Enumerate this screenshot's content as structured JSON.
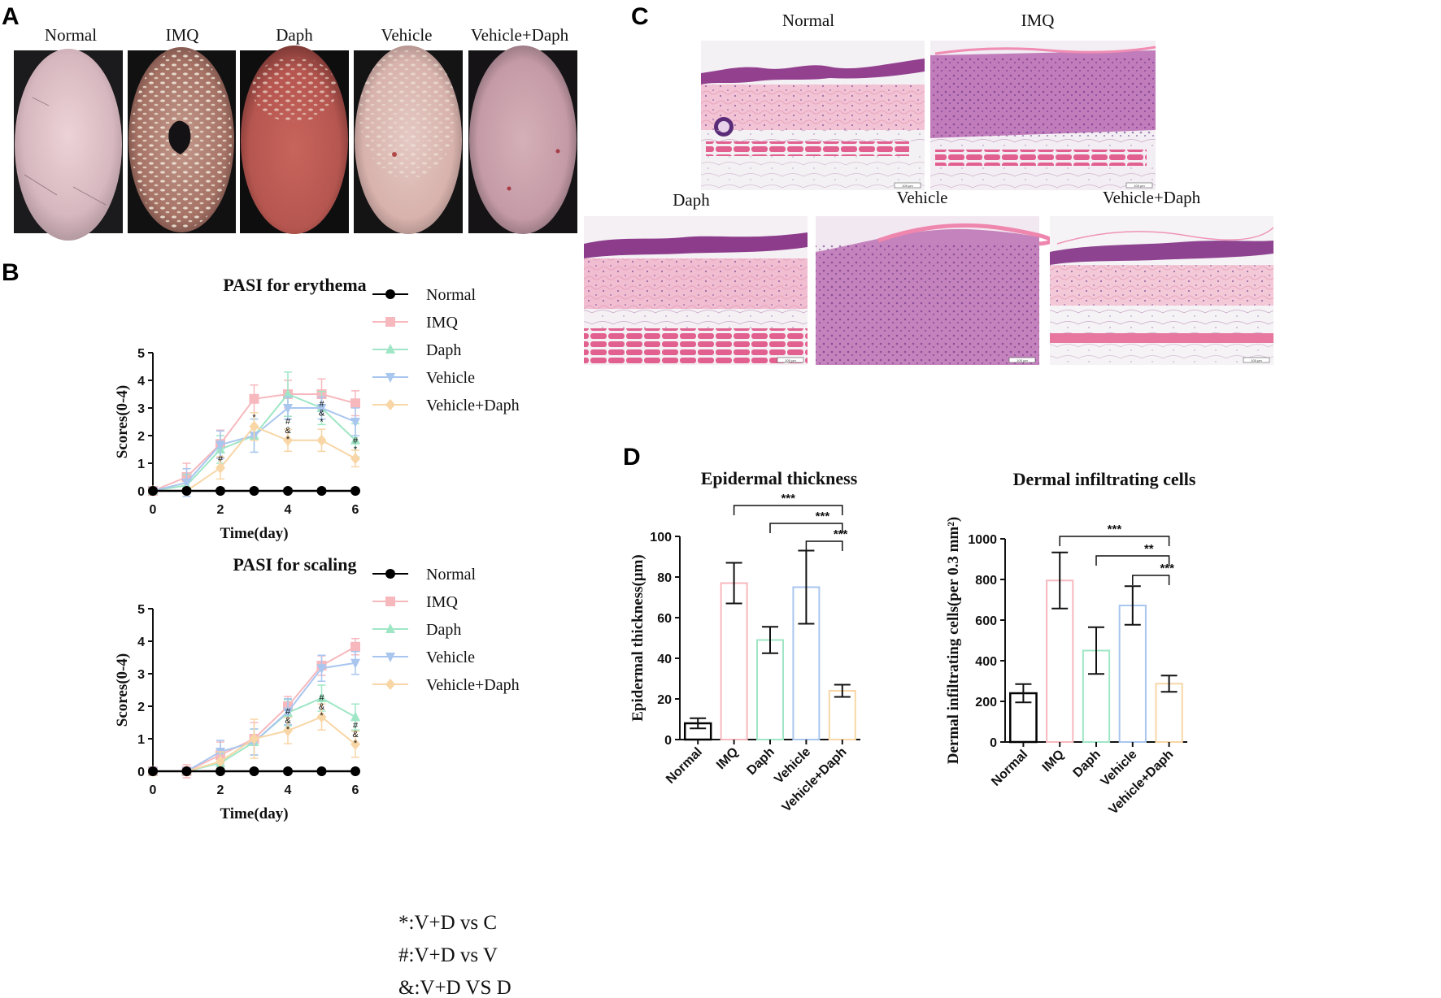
{
  "panel_labels": {
    "a": "A",
    "b": "B",
    "c": "C",
    "d": "D"
  },
  "photo_panel": {
    "titles": [
      "Normal",
      "IMQ",
      "Daph",
      "Vehicle",
      "Vehicle+Daph"
    ]
  },
  "histology_panel": {
    "titles": [
      "Normal",
      "IMQ",
      "Daph",
      "Vehicle",
      "Vehicle+Daph"
    ],
    "scale_bar_label": "100 μm"
  },
  "notes": [
    "*:V+D vs C",
    "#:V+D vs V",
    "&:V+D VS D"
  ],
  "colors": {
    "Normal": "#000000",
    "IMQ": "#f7b8bd",
    "Daph": "#9fe6c6",
    "Vehicle": "#a9c6ef",
    "Vehicle+Daph": "#f8d6a6"
  },
  "chart_data": [
    {
      "type": "line",
      "title": "PASI for erythema",
      "xlabel": "Time(day)",
      "ylabel": "Scores(0-4)",
      "xlim": [
        0,
        6
      ],
      "ylim": [
        0,
        5
      ],
      "xticks": [
        0,
        2,
        4,
        6
      ],
      "yticks": [
        0,
        1,
        2,
        3,
        4,
        5
      ],
      "legend_position": "right",
      "x": [
        0,
        1,
        2,
        3,
        4,
        5,
        6
      ],
      "series": [
        {
          "name": "Normal",
          "color": "#000000",
          "values": [
            0,
            0,
            0,
            0,
            0,
            0,
            0
          ],
          "errors": [
            0,
            0,
            0,
            0,
            0,
            0,
            0
          ],
          "marker": "circle"
        },
        {
          "name": "IMQ",
          "color": "#f7b8bd",
          "values": [
            0,
            0.5,
            1.7,
            3.33,
            3.5,
            3.5,
            3.17
          ],
          "errors": [
            0,
            0.5,
            0.5,
            0.5,
            0.5,
            0.55,
            0.45
          ],
          "marker": "square"
        },
        {
          "name": "Daph",
          "color": "#9fe6c6",
          "values": [
            0,
            0.2,
            1.5,
            2.0,
            3.5,
            3.0,
            1.83
          ],
          "errors": [
            0,
            0.4,
            0.5,
            0.6,
            0.8,
            0.6,
            0.6
          ],
          "marker": "triangle-up"
        },
        {
          "name": "Vehicle",
          "color": "#a9c6ef",
          "values": [
            0,
            0.3,
            1.67,
            2.0,
            3.0,
            3.0,
            2.5
          ],
          "errors": [
            0,
            0.5,
            0.5,
            0.6,
            0.4,
            0.4,
            0.5
          ],
          "marker": "triangle-down"
        },
        {
          "name": "Vehicle+Daph",
          "color": "#f8d6a6",
          "values": [
            0,
            0,
            0.83,
            2.33,
            1.83,
            1.83,
            1.17
          ],
          "errors": [
            0,
            0,
            0.4,
            0.5,
            0.4,
            0.4,
            0.3
          ],
          "marker": "diamond"
        }
      ],
      "annotations": [
        {
          "x": 2,
          "y": 0.83,
          "text": "#"
        },
        {
          "x": 3,
          "y": 2.33,
          "text": "*"
        },
        {
          "x": 4,
          "y": 1.83,
          "text": "#&*"
        },
        {
          "x": 5,
          "y": 2.45,
          "text": "#&*"
        },
        {
          "x": 6,
          "y": 1.45,
          "text": "#*"
        }
      ]
    },
    {
      "type": "line",
      "title": "PASI for scaling",
      "xlabel": "Time(day)",
      "ylabel": "Scores(0-4)",
      "xlim": [
        0,
        6
      ],
      "ylim": [
        0,
        5
      ],
      "xticks": [
        0,
        2,
        4,
        6
      ],
      "yticks": [
        0,
        1,
        2,
        3,
        4,
        5
      ],
      "legend_position": "right",
      "x": [
        0,
        1,
        2,
        3,
        4,
        5,
        6
      ],
      "series": [
        {
          "name": "Normal",
          "color": "#000000",
          "values": [
            0,
            0,
            0,
            0,
            0,
            0,
            0
          ],
          "errors": [
            0,
            0,
            0,
            0,
            0,
            0,
            0
          ],
          "marker": "circle"
        },
        {
          "name": "IMQ",
          "color": "#f7b8bd",
          "values": [
            0,
            0,
            0.5,
            1.0,
            2.0,
            3.25,
            3.83
          ],
          "errors": [
            0,
            0.2,
            0.4,
            0.5,
            0.3,
            0.3,
            0.25
          ],
          "marker": "square"
        },
        {
          "name": "Daph",
          "color": "#9fe6c6",
          "values": [
            0,
            0,
            0.25,
            0.9,
            1.8,
            2.25,
            1.67
          ],
          "errors": [
            0,
            0,
            0.3,
            0.4,
            0.4,
            0.4,
            0.4
          ],
          "marker": "triangle-up"
        },
        {
          "name": "Vehicle",
          "color": "#a9c6ef",
          "values": [
            0,
            0,
            0.6,
            0.9,
            1.83,
            3.17,
            3.33
          ],
          "errors": [
            0,
            0,
            0.35,
            0.4,
            0.4,
            0.4,
            0.35
          ],
          "marker": "triangle-down"
        },
        {
          "name": "Vehicle+Daph",
          "color": "#f8d6a6",
          "values": [
            0,
            0,
            0.3,
            1.0,
            1.25,
            1.67,
            0.83
          ],
          "errors": [
            0,
            0,
            0.3,
            0.6,
            0.4,
            0.4,
            0.4
          ],
          "marker": "diamond"
        }
      ],
      "annotations": [
        {
          "x": 4,
          "y": 1.25,
          "text": "#&*"
        },
        {
          "x": 5,
          "y": 1.67,
          "text": "#&*"
        },
        {
          "x": 6,
          "y": 0.83,
          "text": "#&*"
        }
      ]
    },
    {
      "type": "bar",
      "title": "Epidermal thickness",
      "xlabel": "",
      "ylabel": "Epidermal thickness(μm)",
      "ylim": [
        0,
        100
      ],
      "yticks": [
        0,
        20,
        40,
        60,
        80,
        100
      ],
      "categories": [
        "Normal",
        "IMQ",
        "Daph",
        "Vehicle",
        "Vehicle+Daph"
      ],
      "values": [
        8,
        77,
        49,
        75,
        24
      ],
      "errors": [
        2.5,
        10,
        6.5,
        18,
        3
      ],
      "significance": [
        {
          "from": 1,
          "to": 4,
          "label": "***"
        },
        {
          "from": 2,
          "to": 4,
          "label": "***"
        },
        {
          "from": 3,
          "to": 4,
          "label": "***"
        }
      ]
    },
    {
      "type": "bar",
      "title": "Dermal infiltrating cells",
      "xlabel": "",
      "ylabel": "Dermal infiltrating cells(per 0.3 mm²)",
      "ylim": [
        0,
        1000
      ],
      "yticks": [
        0,
        200,
        400,
        600,
        800,
        1000
      ],
      "categories": [
        "Normal",
        "IMQ",
        "Daph",
        "Vehicle",
        "Vehicle+Daph"
      ],
      "values": [
        240,
        795,
        450,
        672,
        287
      ],
      "errors": [
        45,
        138,
        115,
        95,
        40
      ],
      "significance": [
        {
          "from": 1,
          "to": 4,
          "label": "***"
        },
        {
          "from": 2,
          "to": 4,
          "label": "**"
        },
        {
          "from": 3,
          "to": 4,
          "label": "***"
        }
      ]
    }
  ]
}
